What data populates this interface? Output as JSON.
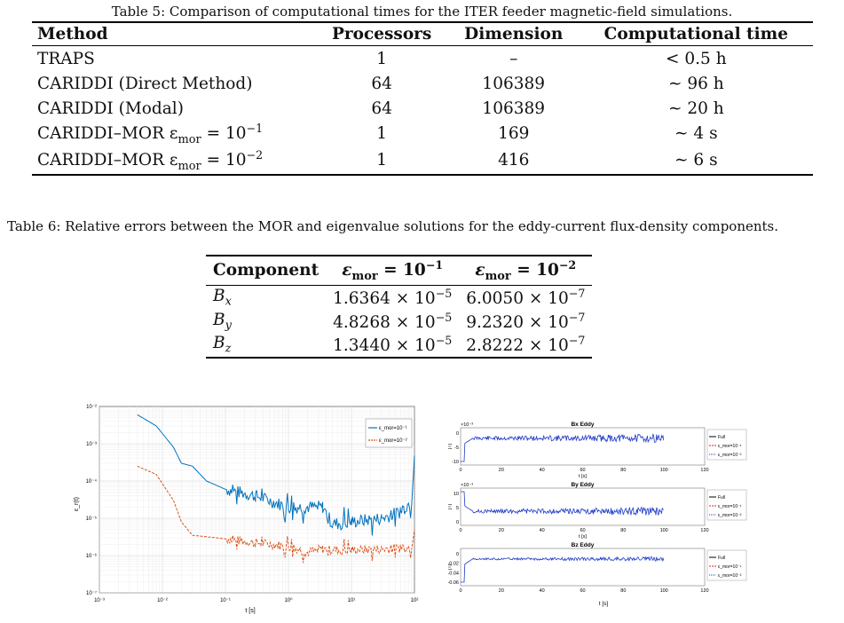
{
  "table5": {
    "caption": "Table 5: Comparison of computational times for the ITER feeder magnetic-field simulations.",
    "headers": [
      "Method",
      "Processors",
      "Dimension",
      "Computational time"
    ],
    "rows": [
      {
        "method": "TRAPS",
        "processors": "1",
        "dimension": "–",
        "time": "< 0.5 h"
      },
      {
        "method": "CARIDDI (Direct Method)",
        "processors": "64",
        "dimension": "106389",
        "time": "∼ 96 h"
      },
      {
        "method": "CARIDDI (Modal)",
        "processors": "64",
        "dimension": "106389",
        "time": "∼ 20 h"
      },
      {
        "method": "CARIDDI–MOR ε",
        "method_sub": "mor",
        "method_tail": " = 10",
        "method_exp": "−1",
        "processors": "1",
        "dimension": "169",
        "time": "∼ 4 s"
      },
      {
        "method": "CARIDDI–MOR ε",
        "method_sub": "mor",
        "method_tail": " = 10",
        "method_exp": "−2",
        "processors": "1",
        "dimension": "416",
        "time": "∼ 6 s"
      }
    ]
  },
  "table6": {
    "caption": "Table 6: Relative errors between the MOR and eigenvalue solutions for the eddy-current flux-density components.",
    "header_component": "Component",
    "header_eps1_base": "ε",
    "header_eps1_sub": "mor",
    "header_eps1_tail": " = 10",
    "header_eps1_exp": "−1",
    "header_eps2_base": "ε",
    "header_eps2_sub": "mor",
    "header_eps2_tail": " = 10",
    "header_eps2_exp": "−2",
    "rows": [
      {
        "comp": "B",
        "comp_sub": "x",
        "v1": "1.6364 × 10",
        "v1_exp": "−5",
        "v2": "6.0050 × 10",
        "v2_exp": "−7"
      },
      {
        "comp": "B",
        "comp_sub": "y",
        "v1": "4.8268 × 10",
        "v1_exp": "−5",
        "v2": "9.2320 × 10",
        "v2_exp": "−7"
      },
      {
        "comp": "B",
        "comp_sub": "z",
        "v1": "1.3440 × 10",
        "v1_exp": "−5",
        "v2": "2.8222 × 10",
        "v2_exp": "−7"
      }
    ]
  },
  "figure_left": {
    "ylabel": "ε_r(t)",
    "xlabel": "t [s]",
    "xticks": [
      "10⁻³",
      "10⁻²",
      "10⁻¹",
      "10⁰",
      "10¹",
      "10²"
    ],
    "yticks": [
      "10⁻²",
      "10⁻³",
      "10⁻⁴",
      "10⁻⁵",
      "10⁻⁶",
      "10⁻⁷"
    ],
    "legend": [
      "ε_mor=10⁻¹",
      "ε_mor=10⁻²"
    ],
    "colors": {
      "series1": "#0072BD",
      "series2": "#D95319"
    }
  },
  "figure_right": {
    "panels": [
      {
        "title": "Bx Eddy",
        "exp_label": "×10⁻³",
        "yticks": [
          "0",
          "-5",
          "-10"
        ]
      },
      {
        "title": "By Eddy",
        "exp_label": "×10⁻³",
        "yticks": [
          "10",
          "5",
          "0"
        ]
      },
      {
        "title": "Bz Eddy",
        "exp_label": "",
        "yticks": [
          "0",
          "-0.02",
          "-0.04",
          "-0.06"
        ]
      }
    ],
    "xticks": [
      "0",
      "20",
      "40",
      "60",
      "80",
      "100",
      "120"
    ],
    "xlabel": "t [s]",
    "ylabel": "[T]",
    "legend": [
      "Full",
      "ε_mor=10⁻¹",
      "ε_mor=10⁻²"
    ],
    "colors": {
      "full": "#000000",
      "mor1": "#D62728",
      "mor2": "#1F3BC7"
    }
  },
  "chart_data": [
    {
      "type": "line",
      "xscale": "log",
      "yscale": "log",
      "xlim": [
        0.001,
        100
      ],
      "ylim": [
        1e-07,
        0.01
      ],
      "xlabel": "t [s]",
      "ylabel": "ε_r(t)",
      "legend_position": "top-right",
      "series": [
        {
          "name": "ε_mor=10⁻¹",
          "x": [
            0.004,
            0.008,
            0.015,
            0.02,
            0.03,
            0.05,
            0.1,
            0.3,
            1,
            2,
            3.5,
            5,
            10,
            30,
            60,
            90,
            100
          ],
          "y": [
            0.006,
            0.003,
            0.0008,
            0.0003,
            0.00025,
            0.0001,
            6e-05,
            4e-05,
            2e-05,
            2e-05,
            2e-05,
            7e-06,
            8e-06,
            1e-05,
            1.5e-05,
            3e-05,
            0.0005
          ]
        },
        {
          "name": "ε_mor=10⁻²",
          "x": [
            0.004,
            0.008,
            0.015,
            0.02,
            0.03,
            0.05,
            0.1,
            0.3,
            1,
            2,
            3.5,
            5,
            10,
            30,
            60,
            90,
            100
          ],
          "y": [
            0.00025,
            0.00015,
            3e-05,
            8e-06,
            3.5e-06,
            3.2e-06,
            2.8e-06,
            2.2e-06,
            1.8e-06,
            1.2e-06,
            1.5e-06,
            1.4e-06,
            1.4e-06,
            1.5e-06,
            1.6e-06,
            1.8e-06,
            5e-06
          ]
        }
      ]
    }
  ]
}
